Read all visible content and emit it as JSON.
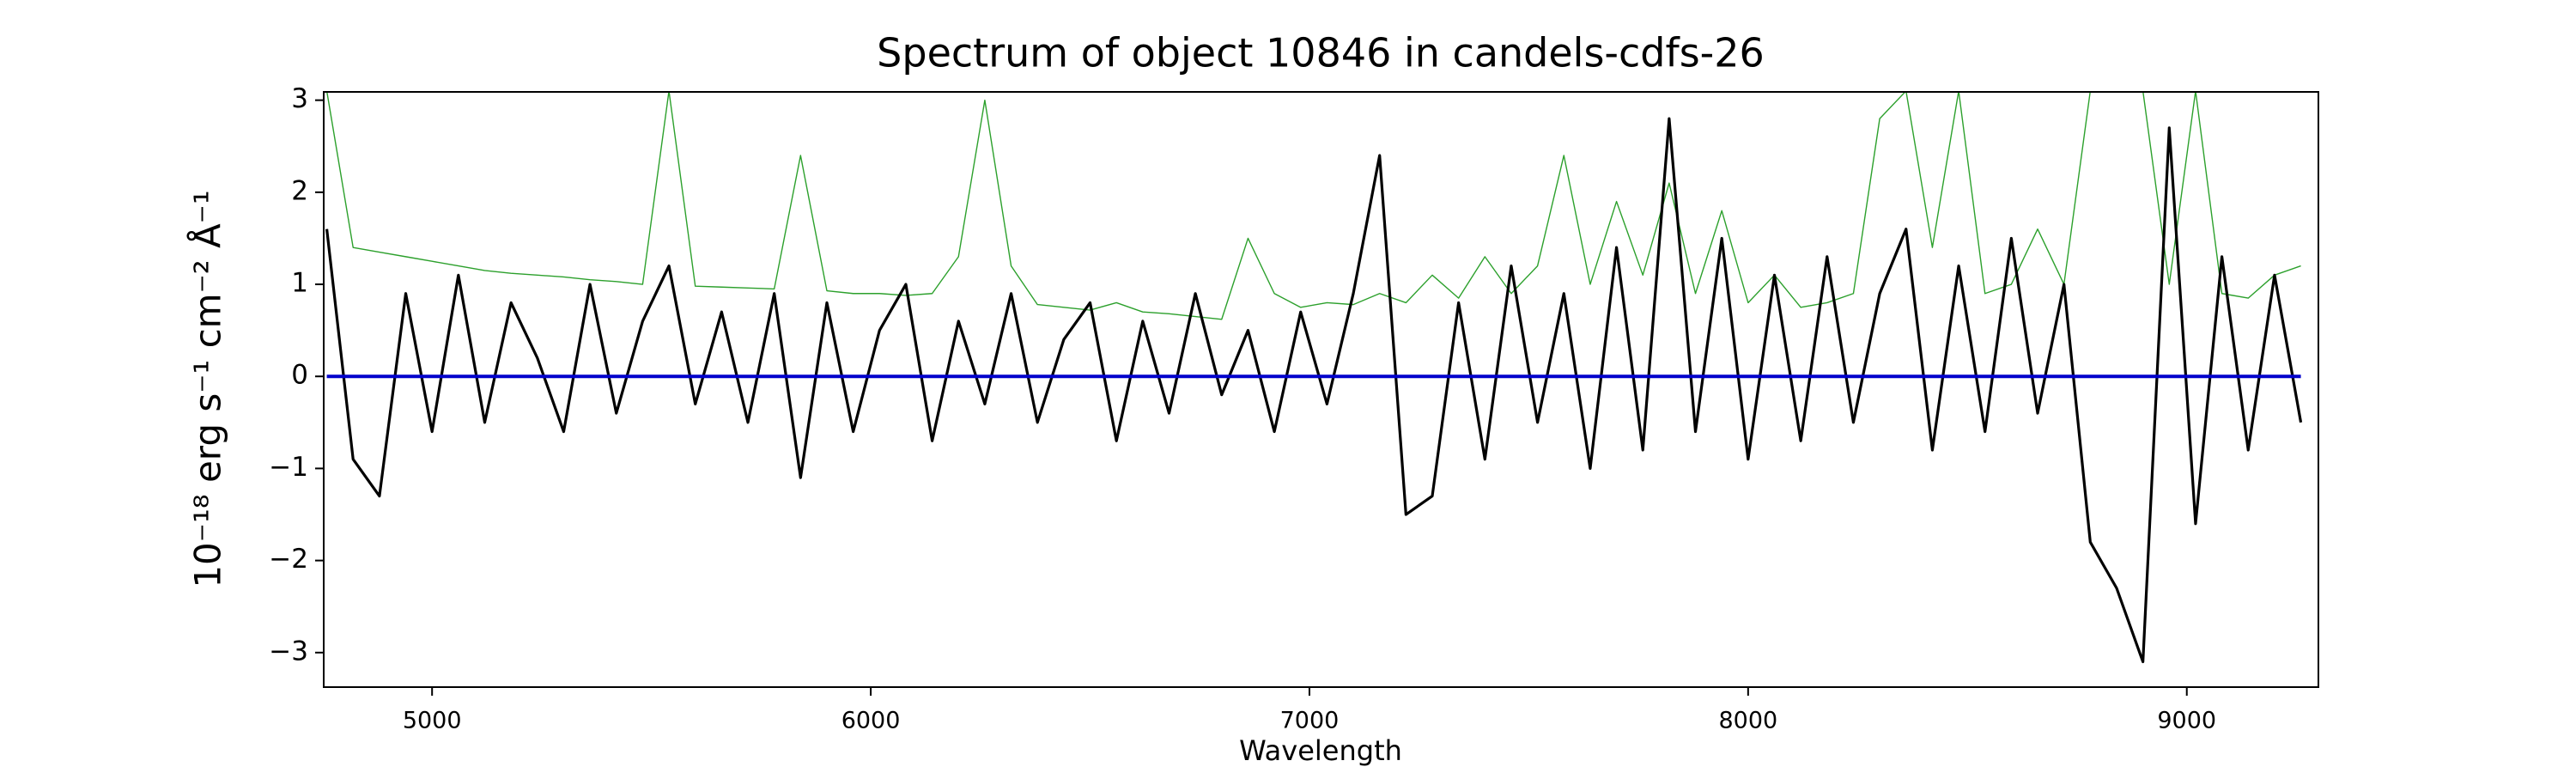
{
  "chart_data": {
    "type": "line",
    "title": "Spectrum of object 10846 in candels-cdfs-26",
    "xlabel": "Wavelength",
    "ylabel": "10⁻¹⁸ erg s⁻¹ cm⁻² Å⁻¹",
    "x": [
      4760,
      4820,
      4880,
      4940,
      5000,
      5060,
      5120,
      5180,
      5240,
      5300,
      5360,
      5420,
      5480,
      5540,
      5600,
      5660,
      5720,
      5780,
      5840,
      5900,
      5960,
      6020,
      6080,
      6140,
      6200,
      6260,
      6320,
      6380,
      6440,
      6500,
      6560,
      6620,
      6680,
      6740,
      6800,
      6860,
      6920,
      6980,
      7040,
      7100,
      7160,
      7220,
      7280,
      7340,
      7400,
      7460,
      7520,
      7580,
      7640,
      7700,
      7760,
      7820,
      7880,
      7940,
      8000,
      8060,
      8120,
      8180,
      8240,
      8300,
      8360,
      8420,
      8480,
      8540,
      8600,
      8660,
      8720,
      8780,
      8840,
      8900,
      8960,
      9020,
      9080,
      9140,
      9200,
      9260
    ],
    "series": [
      {
        "color": "#2ca02c",
        "values": [
          3.1,
          1.4,
          1.35,
          1.3,
          1.25,
          1.2,
          1.15,
          1.12,
          1.1,
          1.08,
          1.05,
          1.03,
          1.0,
          3.1,
          0.98,
          0.97,
          0.96,
          0.95,
          2.4,
          0.93,
          0.9,
          0.9,
          0.88,
          0.9,
          1.3,
          3.0,
          1.2,
          0.78,
          0.75,
          0.72,
          0.8,
          0.7,
          0.68,
          0.65,
          0.62,
          1.5,
          0.9,
          0.75,
          0.8,
          0.78,
          0.9,
          0.8,
          1.1,
          0.85,
          1.3,
          0.9,
          1.2,
          2.4,
          1.0,
          1.9,
          1.1,
          2.1,
          0.9,
          1.8,
          0.8,
          1.1,
          0.75,
          0.8,
          0.9,
          2.8,
          3.1,
          1.4,
          3.1,
          0.9,
          1.0,
          1.6,
          1.0,
          3.1,
          3.1,
          3.1,
          1.0,
          3.1,
          0.9,
          0.85,
          1.1,
          1.2
        ]
      },
      {
        "color": "#000000",
        "values": [
          1.6,
          -0.9,
          -1.3,
          0.9,
          -0.6,
          1.1,
          -0.5,
          0.8,
          0.2,
          -0.6,
          1.0,
          -0.4,
          0.6,
          1.2,
          -0.3,
          0.7,
          -0.5,
          0.9,
          -1.1,
          0.8,
          -0.6,
          0.5,
          1.0,
          -0.7,
          0.6,
          -0.3,
          0.9,
          -0.5,
          0.4,
          0.8,
          -0.7,
          0.6,
          -0.4,
          0.9,
          -0.2,
          0.5,
          -0.6,
          0.7,
          -0.3,
          0.9,
          2.4,
          -1.5,
          -1.3,
          0.8,
          -0.9,
          1.2,
          -0.5,
          0.9,
          -1.0,
          1.4,
          -0.8,
          2.8,
          -0.6,
          1.5,
          -0.9,
          1.1,
          -0.7,
          1.3,
          -0.5,
          0.9,
          1.6,
          -0.8,
          1.2,
          -0.6,
          1.5,
          -0.4,
          1.0,
          -1.8,
          -2.3,
          -3.1,
          2.7,
          -1.6,
          1.3,
          -0.8,
          1.1,
          -0.5
        ]
      },
      {
        "color": "#0000cc",
        "values": [
          0,
          0,
          0,
          0,
          0,
          0,
          0,
          0,
          0,
          0,
          0,
          0,
          0,
          0,
          0,
          0,
          0,
          0,
          0,
          0,
          0,
          0,
          0,
          0,
          0,
          0,
          0,
          0,
          0,
          0,
          0,
          0,
          0,
          0,
          0,
          0,
          0,
          0,
          0,
          0,
          0,
          0,
          0,
          0,
          0,
          0,
          0,
          0,
          0,
          0,
          0,
          0,
          0,
          0,
          0,
          0,
          0,
          0,
          0,
          0,
          0,
          0,
          0,
          0,
          0,
          0,
          0,
          0,
          0,
          0,
          0,
          0,
          0,
          0,
          0,
          0
        ]
      }
    ],
    "xlim": [
      4753,
      9300
    ],
    "xticks": [
      5000,
      6000,
      7000,
      8000,
      9000
    ],
    "ylim": [
      -3.375,
      3.09
    ],
    "yticks": [
      {
        "value": -3,
        "label": "−3"
      },
      {
        "value": -2,
        "label": "−2"
      },
      {
        "value": -1,
        "label": "−1"
      },
      0,
      1,
      2,
      3
    ],
    "grid": false
  }
}
